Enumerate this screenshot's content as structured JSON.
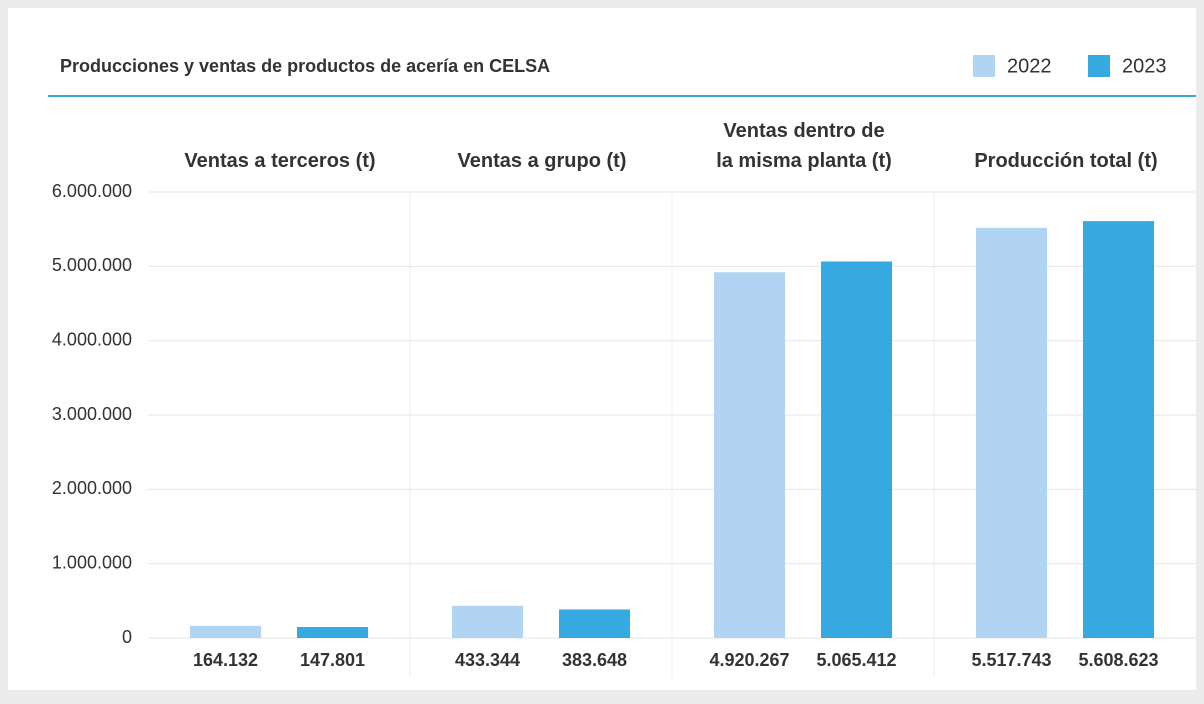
{
  "chart_data": {
    "type": "bar",
    "title": "Producciones y ventas de productos de acería en CELSA",
    "categories": [
      "Ventas a terceros (t)",
      "Ventas a grupo (t)",
      "Ventas dentro de\nla misma planta (t)",
      "Producción total (t)"
    ],
    "series": [
      {
        "name": "2022",
        "color": "#b0d4f1",
        "values": [
          164132,
          433344,
          4920267,
          5517743
        ],
        "value_labels": [
          "164.132",
          "433.344",
          "4.920.267",
          "5.517.743"
        ]
      },
      {
        "name": "2023",
        "color": "#36a9e1",
        "values": [
          147801,
          383648,
          5065412,
          5608623
        ],
        "value_labels": [
          "147.801",
          "383.648",
          "5.065.412",
          "5.608.623"
        ]
      }
    ],
    "ylim": [
      0,
      6000000
    ],
    "yticks": [
      0,
      {
        "value": 1000000,
        "label": "1.000.000"
      },
      {
        "value": 2000000,
        "label": "2.000.000"
      },
      {
        "value": 3000000,
        "label": "3.000.000"
      },
      {
        "value": 4000000,
        "label": "4.000.000"
      },
      {
        "value": 5000000,
        "label": "5.000.000"
      },
      {
        "value": 6000000,
        "label": "6.000.000"
      }
    ],
    "grid": true,
    "legend": "top-right"
  }
}
